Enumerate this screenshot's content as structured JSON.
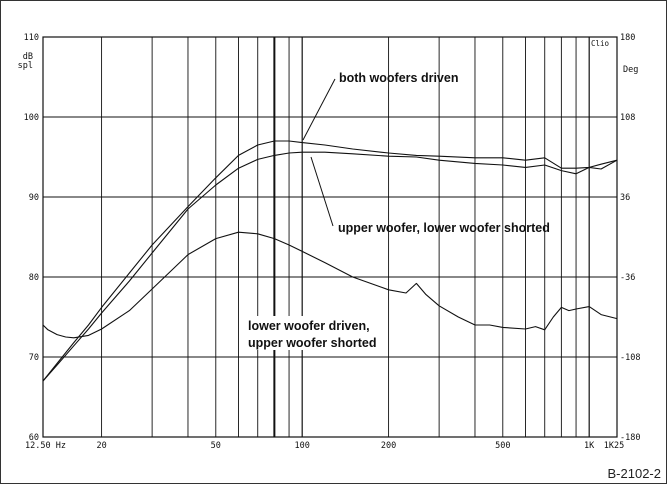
{
  "figure_id": "B-2102-2",
  "chart_data": {
    "type": "line",
    "x_scale": "log",
    "xlim": [
      12.5,
      1250
    ],
    "ylim": [
      60,
      110
    ],
    "y2lim": [
      -180,
      180
    ],
    "grid": true,
    "y_unit_top": "dB",
    "y_unit_bottom": "spl",
    "y2_unit": "Deg",
    "brand": "Clio",
    "x_tick_labels": [
      {
        "x": 12.5,
        "label": "12.50 Hz"
      },
      {
        "x": 20,
        "label": "20"
      },
      {
        "x": 50,
        "label": "50"
      },
      {
        "x": 100,
        "label": "100"
      },
      {
        "x": 200,
        "label": "200"
      },
      {
        "x": 500,
        "label": "500"
      },
      {
        "x": 1000,
        "label": "1K"
      },
      {
        "x": 1250,
        "label": "1K25"
      }
    ],
    "y_ticks": [
      60,
      70,
      80,
      90,
      100,
      110
    ],
    "y2_ticks": [
      -180,
      -108,
      -36,
      36,
      108,
      180
    ],
    "annotations": [
      {
        "text": "both woofers driven",
        "series": 0
      },
      {
        "text": "upper woofer, lower woofer shorted",
        "series": 1
      },
      {
        "text": "lower woofer driven,",
        "series": 2
      },
      {
        "text": "upper woofer shorted",
        "series": 2
      }
    ],
    "series": [
      {
        "x": [
          12.5,
          14,
          16,
          18,
          20,
          25,
          30,
          40,
          50,
          60,
          70,
          80,
          90,
          100,
          120,
          150,
          200,
          250,
          300,
          400,
          500,
          600,
          700,
          800,
          900,
          1000,
          1100,
          1250
        ],
        "y": [
          67,
          69.2,
          71.8,
          74,
          76.2,
          80.5,
          84,
          88.8,
          92.4,
          95.2,
          96.5,
          97,
          97,
          96.8,
          96.5,
          96,
          95.5,
          95.2,
          95.1,
          94.9,
          94.9,
          94.6,
          94.9,
          93.6,
          93.6,
          93.7,
          94.1,
          94.6
        ]
      },
      {
        "x": [
          12.5,
          14,
          16,
          18,
          20,
          25,
          30,
          40,
          50,
          60,
          70,
          80,
          90,
          100,
          120,
          150,
          200,
          250,
          300,
          400,
          500,
          600,
          700,
          800,
          900,
          1000,
          1100,
          1250
        ],
        "y": [
          67,
          69,
          71.4,
          73.5,
          75.5,
          79.5,
          83,
          88.5,
          91.5,
          93.6,
          94.7,
          95.2,
          95.5,
          95.6,
          95.6,
          95.4,
          95.1,
          95,
          94.6,
          94.2,
          94,
          93.7,
          94,
          93.3,
          92.9,
          93.7,
          93.5,
          94.6
        ]
      },
      {
        "x": [
          12.5,
          13,
          14,
          15,
          16,
          18,
          20,
          25,
          30,
          40,
          50,
          60,
          70,
          80,
          90,
          100,
          120,
          150,
          200,
          230,
          250,
          270,
          300,
          350,
          400,
          450,
          500,
          600,
          650,
          700,
          750,
          800,
          850,
          900,
          1000,
          1100,
          1250
        ],
        "y": [
          74,
          73.4,
          72.8,
          72.5,
          72.4,
          72.7,
          73.5,
          75.8,
          78.5,
          82.8,
          84.8,
          85.6,
          85.4,
          84.8,
          84,
          83.2,
          81.8,
          80,
          78.4,
          78,
          79.2,
          77.8,
          76.4,
          75,
          74,
          74,
          73.7,
          73.5,
          73.8,
          73.4,
          75,
          76.2,
          75.8,
          76,
          76.3,
          75.3,
          74.8
        ]
      }
    ]
  }
}
